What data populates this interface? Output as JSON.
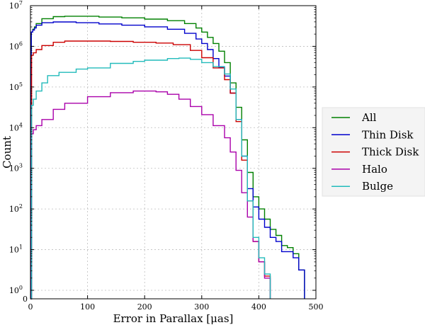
{
  "chart_data": {
    "type": "line",
    "title": "",
    "xlabel": "Error in Parallax [μas]",
    "ylabel": "Count",
    "xlim": [
      0,
      500
    ],
    "ylim_log10": [
      0,
      7
    ],
    "yscale": "symlog",
    "grid": true,
    "legend_position": "right",
    "x_ticks": [
      0,
      100,
      200,
      300,
      400,
      500
    ],
    "x_tick_labels": [
      "0",
      "100",
      "200",
      "300",
      "400",
      "500"
    ],
    "y_ticks": [
      {
        "base": "",
        "exp": "",
        "plain": "0"
      },
      {
        "base": "10",
        "exp": "0",
        "plain": ""
      },
      {
        "base": "10",
        "exp": "1",
        "plain": ""
      },
      {
        "base": "10",
        "exp": "2",
        "plain": ""
      },
      {
        "base": "10",
        "exp": "3",
        "plain": ""
      },
      {
        "base": "10",
        "exp": "4",
        "plain": ""
      },
      {
        "base": "10",
        "exp": "5",
        "plain": ""
      },
      {
        "base": "10",
        "exp": "6",
        "plain": ""
      },
      {
        "base": "10",
        "exp": "7",
        "plain": ""
      }
    ],
    "series": [
      {
        "name": "All",
        "color": "#008000",
        "points": [
          [
            0,
            0
          ],
          [
            1.5,
            6.35
          ],
          [
            4,
            6.42
          ],
          [
            7,
            6.48
          ],
          [
            10,
            6.56
          ],
          [
            20,
            6.68
          ],
          [
            40,
            6.73
          ],
          [
            60,
            6.74
          ],
          [
            80,
            6.74
          ],
          [
            120,
            6.72
          ],
          [
            160,
            6.7
          ],
          [
            200,
            6.67
          ],
          [
            240,
            6.63
          ],
          [
            270,
            6.56
          ],
          [
            290,
            6.45
          ],
          [
            300,
            6.35
          ],
          [
            310,
            6.22
          ],
          [
            320,
            6.07
          ],
          [
            330,
            5.88
          ],
          [
            340,
            5.6
          ],
          [
            350,
            5.1
          ],
          [
            360,
            4.5
          ],
          [
            370,
            3.7
          ],
          [
            380,
            2.9
          ],
          [
            390,
            2.3
          ],
          [
            400,
            2.0
          ],
          [
            410,
            1.75
          ],
          [
            420,
            1.5
          ],
          [
            430,
            1.35
          ],
          [
            440,
            1.1
          ],
          [
            450,
            1.05
          ],
          [
            460,
            0.9
          ],
          [
            470,
            0.5
          ],
          [
            480,
            0
          ]
        ]
      },
      {
        "name": "Thin Disk",
        "color": "#0000cc",
        "points": [
          [
            0,
            0
          ],
          [
            1.5,
            6.35
          ],
          [
            4,
            6.4
          ],
          [
            7,
            6.45
          ],
          [
            10,
            6.52
          ],
          [
            20,
            6.58
          ],
          [
            40,
            6.6
          ],
          [
            60,
            6.6
          ],
          [
            80,
            6.58
          ],
          [
            120,
            6.55
          ],
          [
            160,
            6.52
          ],
          [
            200,
            6.48
          ],
          [
            240,
            6.42
          ],
          [
            270,
            6.32
          ],
          [
            290,
            6.18
          ],
          [
            300,
            6.07
          ],
          [
            310,
            5.92
          ],
          [
            320,
            5.7
          ],
          [
            330,
            5.48
          ],
          [
            340,
            5.27
          ],
          [
            350,
            4.85
          ],
          [
            360,
            4.2
          ],
          [
            370,
            3.3
          ],
          [
            380,
            2.5
          ],
          [
            390,
            2.05
          ],
          [
            400,
            1.75
          ],
          [
            410,
            1.55
          ],
          [
            420,
            1.3
          ],
          [
            430,
            1.2
          ],
          [
            440,
            0.95
          ],
          [
            450,
            0.95
          ],
          [
            460,
            0.8
          ],
          [
            470,
            0.5
          ],
          [
            480,
            0
          ]
        ]
      },
      {
        "name": "Thick Disk",
        "color": "#cc0000",
        "points": [
          [
            0,
            0
          ],
          [
            2,
            5.78
          ],
          [
            5,
            5.84
          ],
          [
            10,
            5.92
          ],
          [
            20,
            6.02
          ],
          [
            40,
            6.1
          ],
          [
            60,
            6.13
          ],
          [
            100,
            6.13
          ],
          [
            140,
            6.12
          ],
          [
            180,
            6.1
          ],
          [
            220,
            6.08
          ],
          [
            250,
            6.04
          ],
          [
            280,
            5.9
          ],
          [
            300,
            5.72
          ],
          [
            320,
            5.47
          ],
          [
            340,
            5.18
          ],
          [
            350,
            4.85
          ],
          [
            360,
            4.15
          ],
          [
            370,
            3.2
          ],
          [
            380,
            2.2
          ],
          [
            390,
            1.2
          ],
          [
            400,
            0.7
          ],
          [
            410,
            0.35
          ],
          [
            420,
            0
          ]
        ]
      },
      {
        "name": "Halo",
        "color": "#aa00aa",
        "points": [
          [
            0,
            0
          ],
          [
            2,
            3.85
          ],
          [
            5,
            3.95
          ],
          [
            10,
            4.05
          ],
          [
            20,
            4.2
          ],
          [
            40,
            4.45
          ],
          [
            60,
            4.6
          ],
          [
            100,
            4.76
          ],
          [
            140,
            4.86
          ],
          [
            180,
            4.9
          ],
          [
            200,
            4.9
          ],
          [
            220,
            4.88
          ],
          [
            240,
            4.82
          ],
          [
            260,
            4.7
          ],
          [
            280,
            4.52
          ],
          [
            300,
            4.32
          ],
          [
            320,
            4.05
          ],
          [
            340,
            3.75
          ],
          [
            350,
            3.4
          ],
          [
            360,
            2.95
          ],
          [
            370,
            2.4
          ],
          [
            380,
            1.8
          ],
          [
            390,
            1.2
          ],
          [
            400,
            0.7
          ],
          [
            410,
            0.3
          ],
          [
            420,
            0
          ]
        ]
      },
      {
        "name": "Bulge",
        "color": "#22bbbb",
        "points": [
          [
            0,
            0
          ],
          [
            2,
            4.55
          ],
          [
            5,
            4.7
          ],
          [
            10,
            4.9
          ],
          [
            20,
            5.1
          ],
          [
            30,
            5.28
          ],
          [
            50,
            5.36
          ],
          [
            80,
            5.44
          ],
          [
            100,
            5.47
          ],
          [
            140,
            5.58
          ],
          [
            180,
            5.63
          ],
          [
            200,
            5.66
          ],
          [
            240,
            5.7
          ],
          [
            260,
            5.71
          ],
          [
            280,
            5.68
          ],
          [
            300,
            5.6
          ],
          [
            320,
            5.5
          ],
          [
            340,
            5.32
          ],
          [
            350,
            4.95
          ],
          [
            360,
            4.2
          ],
          [
            370,
            3.3
          ],
          [
            380,
            2.2
          ],
          [
            390,
            1.3
          ],
          [
            400,
            0.8
          ],
          [
            410,
            0.4
          ],
          [
            420,
            0
          ]
        ]
      }
    ]
  }
}
